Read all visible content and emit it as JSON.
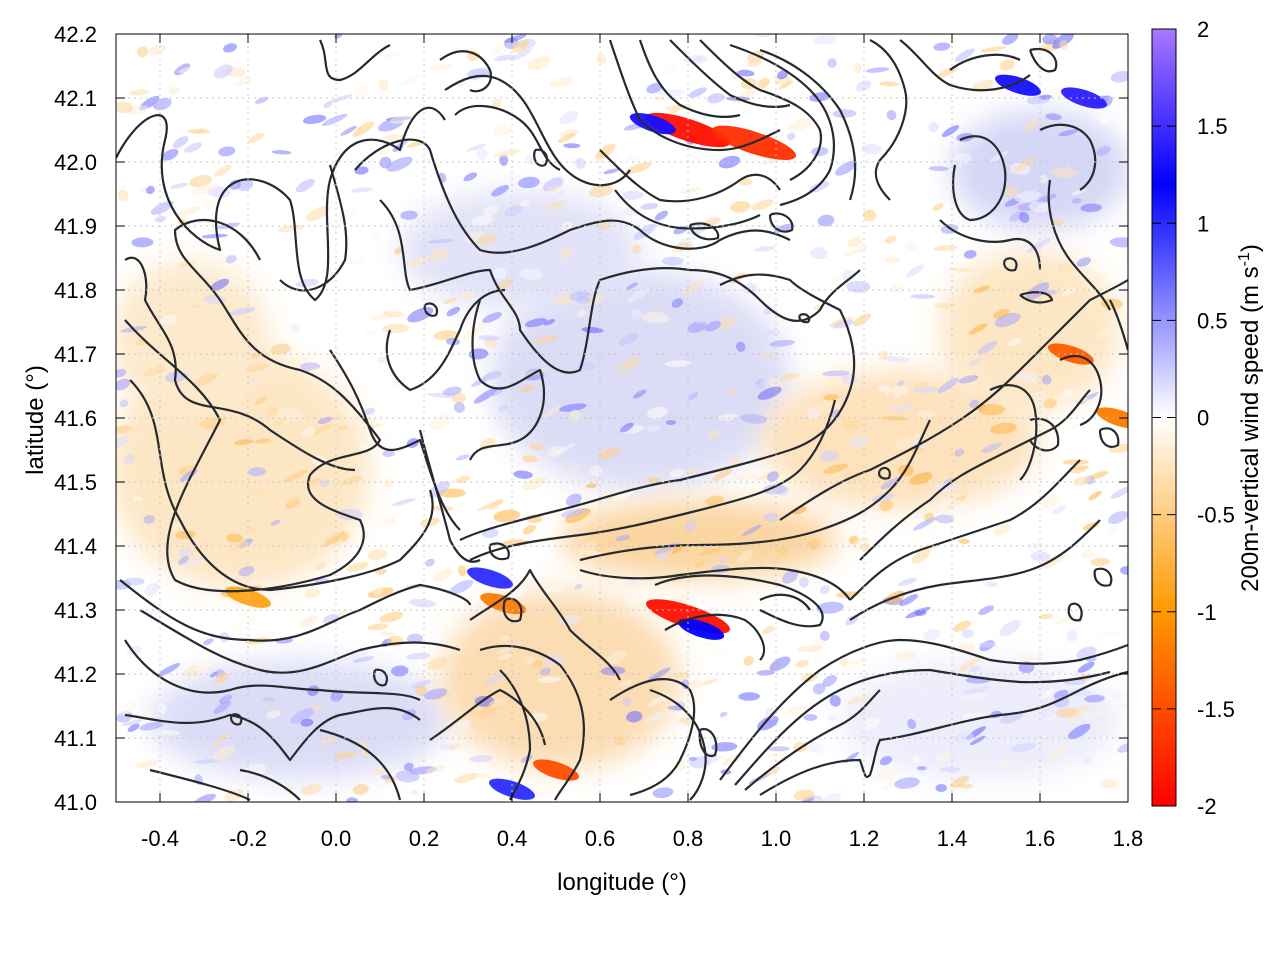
{
  "chart_data": {
    "type": "heatmap",
    "title": "",
    "xlabel": "longitude (°)",
    "ylabel": "latitude (°)",
    "xlim": [
      -0.5,
      1.8
    ],
    "ylim": [
      41.0,
      42.2
    ],
    "x_ticks": [
      -0.4,
      -0.2,
      0.0,
      0.2,
      0.4,
      0.6,
      0.8,
      1.0,
      1.2,
      1.4,
      1.6,
      1.8
    ],
    "x_tick_labels": [
      "-0.4",
      "-0.2",
      "0.0",
      "0.2",
      "0.4",
      "0.6",
      "0.8",
      "1.0",
      "1.2",
      "1.4",
      "1.6",
      "1.8"
    ],
    "y_ticks": [
      41.0,
      41.1,
      41.2,
      41.3,
      41.4,
      41.5,
      41.6,
      41.7,
      41.8,
      41.9,
      42.0,
      42.1,
      42.2
    ],
    "y_tick_labels": [
      "41.0",
      "41.1",
      "41.2",
      "41.3",
      "41.4",
      "41.5",
      "41.6",
      "41.7",
      "41.8",
      "41.9",
      "42.0",
      "42.1",
      "42.2"
    ],
    "grid": true,
    "colorbar": {
      "label": "200m-vertical wind speed (m s",
      "label_sup": "-1",
      "label_close": ")",
      "range": [
        -2,
        2
      ],
      "ticks": [
        -2,
        -1.5,
        -1,
        -0.5,
        0,
        0.5,
        1,
        1.5,
        2
      ],
      "tick_labels": [
        "-2",
        "-1.5",
        "-1",
        "-0.5",
        "0",
        "0.5",
        "1",
        "1.5",
        "2"
      ],
      "colors": [
        "#ff0000",
        "#ff9900",
        "#ffffff",
        "#0000ff",
        "#aa77ff"
      ]
    },
    "features": [
      {
        "name": "downdraft",
        "lon": 0.8,
        "lat": 42.05,
        "value": -1.9
      },
      {
        "name": "downdraft",
        "lon": 0.95,
        "lat": 42.03,
        "value": -1.7
      },
      {
        "name": "updraft",
        "lon": 0.72,
        "lat": 42.06,
        "value": 1.3
      },
      {
        "name": "downdraft",
        "lon": 0.8,
        "lat": 41.29,
        "value": -1.9
      },
      {
        "name": "updraft",
        "lon": 0.83,
        "lat": 41.27,
        "value": 1.2
      },
      {
        "name": "downdraft",
        "lon": 0.38,
        "lat": 41.31,
        "value": -1.2
      },
      {
        "name": "downdraft",
        "lon": 0.5,
        "lat": 41.05,
        "value": -1.5
      },
      {
        "name": "updraft",
        "lon": 1.55,
        "lat": 42.12,
        "value": 1.3
      },
      {
        "name": "updraft",
        "lon": 1.7,
        "lat": 42.1,
        "value": 1.4
      },
      {
        "name": "downdraft",
        "lon": 1.67,
        "lat": 41.7,
        "value": -1.4
      },
      {
        "name": "downdraft",
        "lon": -0.2,
        "lat": 41.32,
        "value": -0.9
      },
      {
        "name": "updraft",
        "lon": 0.35,
        "lat": 41.35,
        "value": 1.0
      },
      {
        "name": "downdraft",
        "lon": 1.78,
        "lat": 41.6,
        "value": -1.2
      },
      {
        "name": "updraft",
        "lon": 0.4,
        "lat": 41.02,
        "value": 1.0
      }
    ]
  }
}
